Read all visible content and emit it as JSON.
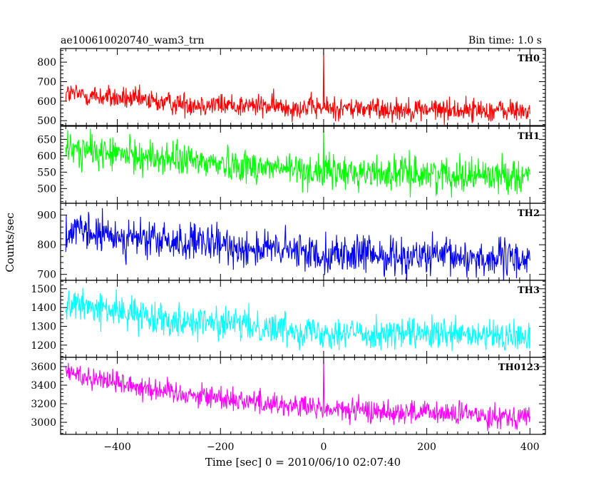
{
  "header": {
    "title": "ae100610020740_wam3_trn",
    "bin_time": "Bin time: 1.0 s"
  },
  "chart_data": {
    "type": "line",
    "title": "ae100610020740_wam3_trn",
    "xlabel": "Time [sec] 0 = 2010/06/10 02:07:40",
    "ylabel": "Counts/sec",
    "xlim": [
      -510,
      430
    ],
    "x_ticks": [
      -400,
      -200,
      0,
      200,
      400
    ],
    "grid": false,
    "panels": [
      {
        "name": "TH0",
        "color": "#ff0000",
        "ylim": [
          475,
          870
        ],
        "y_ticks": [
          500,
          600,
          700,
          800
        ],
        "trend": [
          [
            -500,
            640
          ],
          [
            -300,
            590
          ],
          [
            0,
            565
          ],
          [
            400,
            550
          ]
        ],
        "noise": 30,
        "spike": {
          "x": 0,
          "peak": 870
        }
      },
      {
        "name": "TH1",
        "color": "#00ff00",
        "ylim": [
          455,
          690
        ],
        "y_ticks": [
          500,
          550,
          600,
          650
        ],
        "trend": [
          [
            -500,
            620
          ],
          [
            -300,
            590
          ],
          [
            0,
            550
          ],
          [
            400,
            540
          ]
        ],
        "noise": 26,
        "spike": {
          "x": 0,
          "peak": 690
        }
      },
      {
        "name": "TH2",
        "color": "#0000ff",
        "ylim": [
          680,
          940
        ],
        "y_ticks": [
          700,
          800,
          900
        ],
        "trend": [
          [
            -500,
            845
          ],
          [
            -300,
            810
          ],
          [
            0,
            770
          ],
          [
            400,
            750
          ]
        ],
        "noise": 32,
        "spike": null
      },
      {
        "name": "TH3",
        "color": "#00ffff",
        "ylim": [
          1135,
          1545
        ],
        "y_ticks": [
          1200,
          1300,
          1400,
          1500
        ],
        "trend": [
          [
            -500,
            1420
          ],
          [
            -300,
            1340
          ],
          [
            0,
            1270
          ],
          [
            400,
            1240
          ]
        ],
        "noise": 42,
        "spike": null
      },
      {
        "name": "TH0123",
        "color": "#ff00ff",
        "ylim": [
          2870,
          3700
        ],
        "y_ticks": [
          3000,
          3200,
          3400,
          3600
        ],
        "trend": [
          [
            -500,
            3540
          ],
          [
            -300,
            3330
          ],
          [
            0,
            3140
          ],
          [
            400,
            3060
          ]
        ],
        "noise": 65,
        "spike": {
          "x": 0,
          "peak": 3700
        }
      }
    ]
  }
}
